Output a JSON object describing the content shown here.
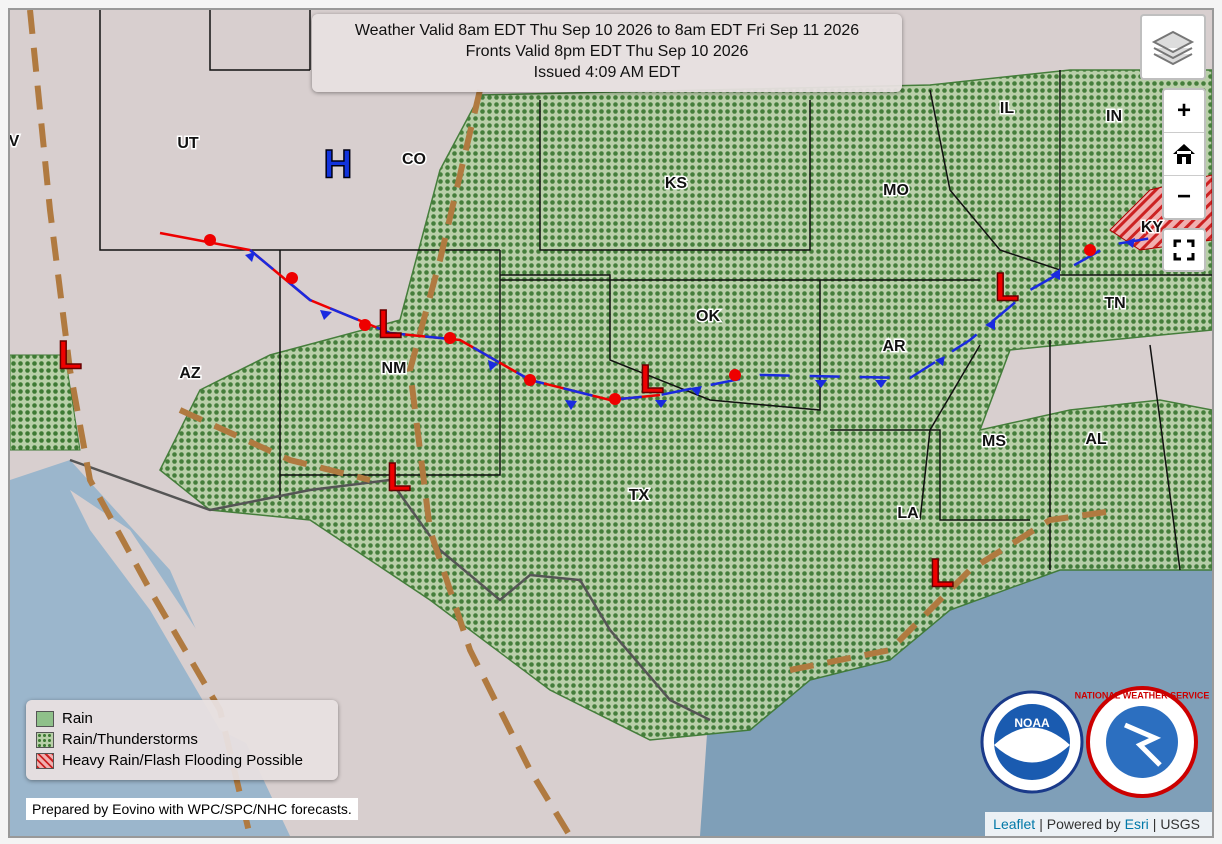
{
  "header": {
    "lines": [
      "Weather Valid 8am EDT Thu Sep 10 2026 to 8am EDT Fri Sep 11 2026",
      "Fronts Valid 8pm EDT Thu Sep 10 2026",
      "Issued 4:09 AM EDT"
    ]
  },
  "states": [
    "V",
    "UT",
    "CO",
    "KS",
    "MO",
    "IL",
    "IN",
    "KY",
    "TN",
    "OK",
    "AR",
    "NM",
    "AZ",
    "MS",
    "AL",
    "TX",
    "LA"
  ],
  "pressure_centers": {
    "highs": [
      "H"
    ],
    "lows": [
      "L",
      "L",
      "L",
      "L",
      "L",
      "L"
    ]
  },
  "controls": {
    "zoom_in": "+",
    "zoom_out": "−"
  },
  "legend": [
    "Rain",
    "Rain/Thunderstorms",
    "Heavy Rain/Flash Flooding Possible"
  ],
  "credit": "Prepared by Eovino with WPC/SPC/NHC forecasts.",
  "logos": [
    "NOAA",
    "NATIONAL WEATHER SERVICE"
  ],
  "attribution": [
    "Leaflet",
    "| Powered by",
    "Esri",
    "| USGS"
  ]
}
